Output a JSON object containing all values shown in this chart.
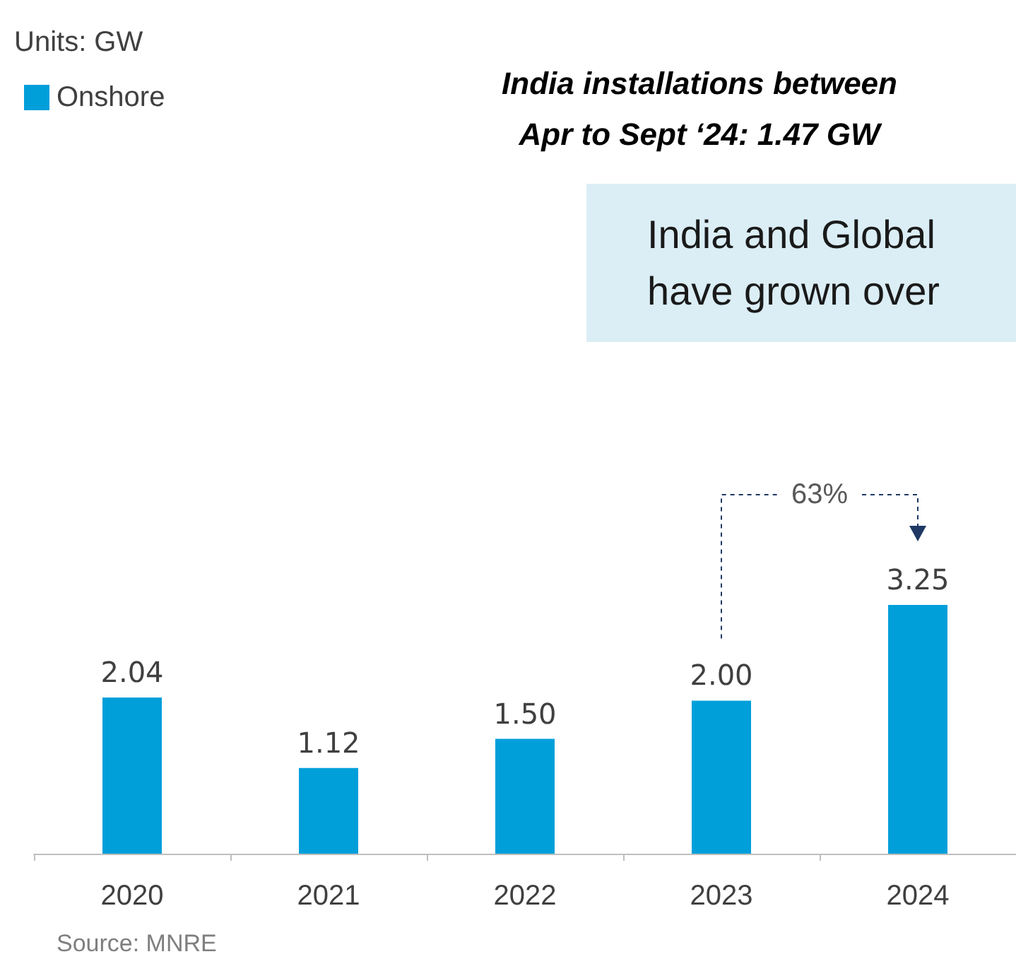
{
  "chart_data": {
    "type": "bar",
    "title": "India installations between\nApr to Sept ‘24: 1.47 GW",
    "categories": [
      "2020",
      "2021",
      "2022",
      "2023",
      "2024"
    ],
    "series": [
      {
        "name": "Onshore",
        "color": "#009fda",
        "values": [
          2.04,
          1.12,
          1.5,
          2.0,
          3.25
        ],
        "value_labels": [
          "2.04",
          "1.12",
          "1.50",
          "2.00",
          "3.25"
        ]
      }
    ],
    "grid": false,
    "legend": "top left",
    "tick_labels": "x",
    "annotations": [
      "Units: GW",
      "India and Global\nhave grown over",
      "63%",
      "Source: MNRE"
    ]
  }
}
